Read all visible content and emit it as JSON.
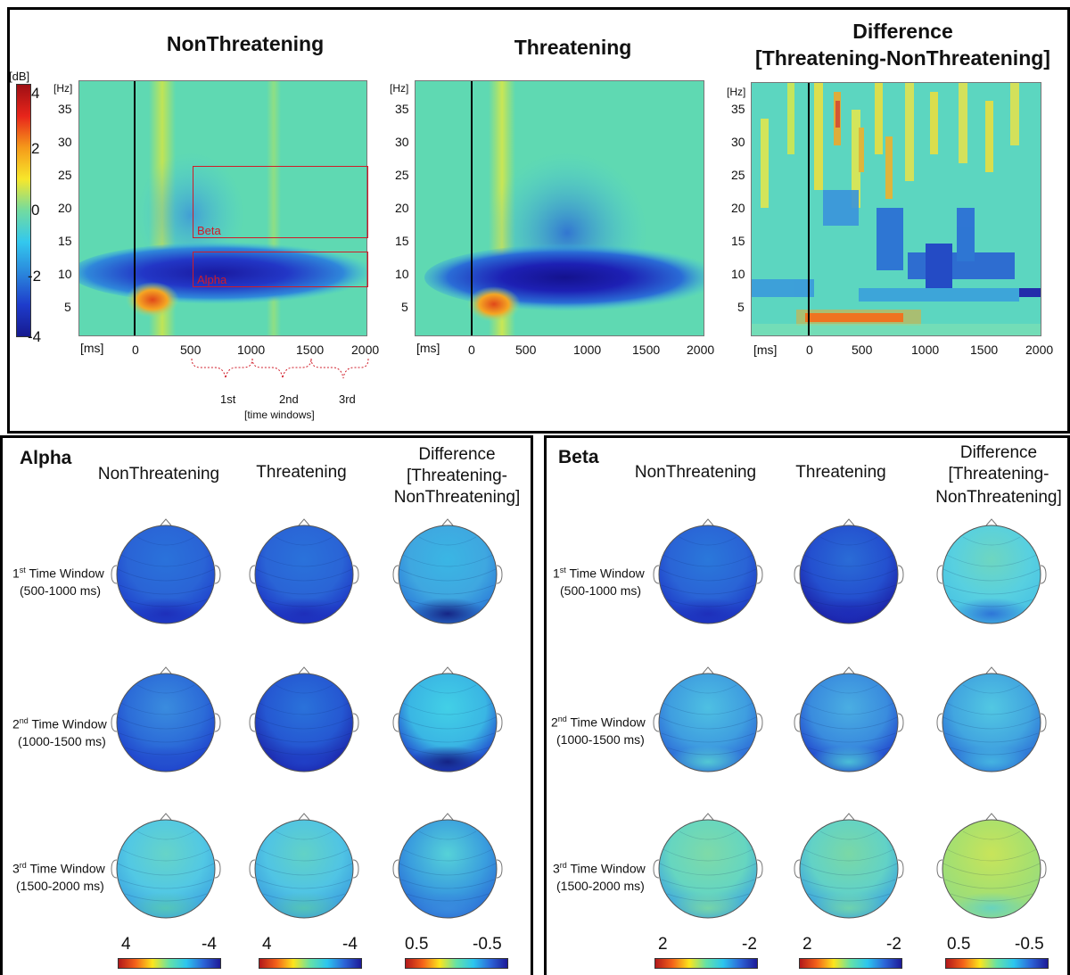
{
  "top_panel": {
    "titles": {
      "nonthreatening": "NonThreatening",
      "threatening": "Threatening",
      "difference_line1": "Difference",
      "difference_line2": "[Threatening-NonThreatening]"
    },
    "colorbar": {
      "unit": "[dB]",
      "ticks": [
        "4",
        "2",
        "0",
        "-2",
        "-4"
      ]
    },
    "y_axis_unit": "[Hz]",
    "y_ticks": [
      "35",
      "30",
      "25",
      "20",
      "15",
      "10",
      "5"
    ],
    "x_axis_unit": "[ms]",
    "x_ticks": [
      "0",
      "500",
      "1000",
      "1500",
      "2000"
    ],
    "roi_labels": {
      "beta": "Beta",
      "alpha": "Alpha"
    },
    "time_windows": {
      "labels": [
        "1st",
        "2nd",
        "3rd"
      ],
      "caption": "[time windows]"
    }
  },
  "alpha_panel": {
    "title": "Alpha",
    "col_heads": {
      "nonthreatening": "NonThreatening",
      "threatening": "Threatening",
      "difference_line1": "Difference",
      "difference_line2": "[Threatening-",
      "difference_line3": "NonThreatening]"
    },
    "rows": [
      {
        "ord": "1",
        "sup": "st",
        "label": " Time Window",
        "range": "(500-1000 ms)"
      },
      {
        "ord": "2",
        "sup": "nd",
        "label": " Time Window",
        "range": "(1000-1500 ms)"
      },
      {
        "ord": "3",
        "sup": "rd",
        "label": " Time Window",
        "range": "(1500-2000 ms)"
      }
    ],
    "scales": [
      {
        "left": "4",
        "right": "-4"
      },
      {
        "left": "4",
        "right": "-4"
      },
      {
        "left": "0.5",
        "right": "-0.5"
      }
    ]
  },
  "beta_panel": {
    "title": "Beta",
    "col_heads": {
      "nonthreatening": "NonThreatening",
      "threatening": "Threatening",
      "difference_line1": "Difference",
      "difference_line2": "[Threatening-",
      "difference_line3": "NonThreatening]"
    },
    "rows": [
      {
        "ord": "1",
        "sup": "st",
        "label": " Time Window",
        "range": "(500-1000 ms)"
      },
      {
        "ord": "2",
        "sup": "nd",
        "label": " Time Window",
        "range": "(1000-1500 ms)"
      },
      {
        "ord": "3",
        "sup": "rd",
        "label": " Time Window",
        "range": "(1500-2000 ms)"
      }
    ],
    "scales": [
      {
        "left": "2",
        "right": "-2"
      },
      {
        "left": "2",
        "right": "-2"
      },
      {
        "left": "0.5",
        "right": "-0.5"
      }
    ]
  },
  "colors": {
    "background_cyan": "#5ed9b4",
    "dark_blue": "#1b1aa6",
    "roi_red": "#d01c28",
    "panel_border": "#000000"
  }
}
